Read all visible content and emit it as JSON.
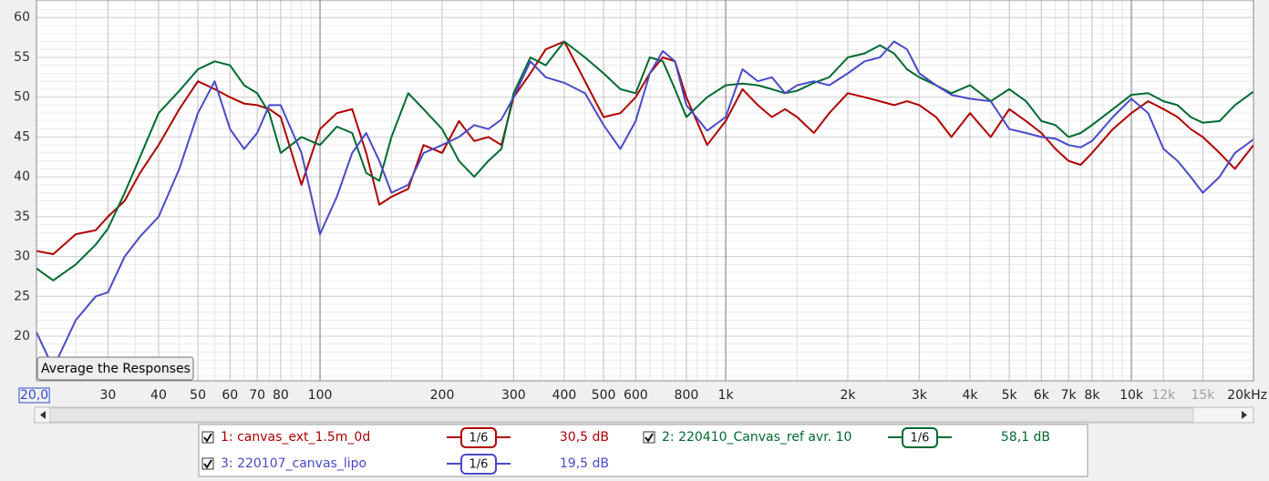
{
  "chart_data": {
    "type": "line",
    "xscale": "log",
    "xlim": [
      20,
      20000
    ],
    "ylim": [
      14.4,
      62.2
    ],
    "yticks": [
      20,
      25,
      30,
      35,
      40,
      45,
      50,
      55,
      60
    ],
    "xticks": [
      {
        "value": 20,
        "label": "20,0"
      },
      30,
      40,
      50,
      60,
      70,
      80,
      100,
      200,
      300,
      400,
      500,
      600,
      800,
      {
        "value": 1000,
        "label": "1k"
      },
      {
        "value": 2000,
        "label": "2k"
      },
      {
        "value": 3000,
        "label": "3k"
      },
      {
        "value": 4000,
        "label": "4k"
      },
      {
        "value": 5000,
        "label": "5k"
      },
      {
        "value": 6000,
        "label": "6k"
      },
      {
        "value": 7000,
        "label": "7k"
      },
      {
        "value": 8000,
        "label": "8k"
      },
      {
        "value": 10000,
        "label": "10k"
      },
      {
        "value": 12000,
        "label": "12k",
        "color": "#a0a0a0"
      },
      {
        "value": 15000,
        "label": "15k",
        "color": "#a0a0a0"
      },
      {
        "value": 20000,
        "label": "20kHz"
      }
    ],
    "grid": true,
    "x": [
      20,
      22,
      25,
      28,
      30,
      33,
      36,
      40,
      45,
      50,
      55,
      60,
      65,
      70,
      75,
      80,
      90,
      100,
      110,
      120,
      130,
      140,
      150,
      165,
      180,
      200,
      220,
      240,
      260,
      280,
      300,
      330,
      360,
      400,
      450,
      500,
      550,
      600,
      650,
      700,
      750,
      800,
      900,
      1000,
      1100,
      1200,
      1300,
      1400,
      1500,
      1650,
      1800,
      2000,
      2200,
      2400,
      2600,
      2800,
      3000,
      3300,
      3600,
      4000,
      4500,
      5000,
      5500,
      6000,
      6500,
      7000,
      7500,
      8000,
      9000,
      10000,
      11000,
      12000,
      13000,
      14000,
      15000,
      16500,
      18000,
      20000
    ],
    "series": [
      {
        "name": "1: canvas_ext_1.5m_0d",
        "color": "#b00000",
        "smoothing": "1/6",
        "level": "30,5 dB",
        "values": [
          30.7,
          30.3,
          32.8,
          33.3,
          35,
          37,
          40.5,
          44,
          48.5,
          52,
          51,
          50,
          49.2,
          49,
          48.5,
          47.5,
          39,
          46,
          48,
          48.5,
          43,
          36.5,
          37.5,
          38.5,
          44,
          43,
          47,
          44.5,
          45,
          44,
          50,
          53,
          56,
          57,
          52,
          47.5,
          48,
          50,
          53,
          55,
          54.5,
          50,
          44,
          47,
          51,
          49,
          47.5,
          48.5,
          47.5,
          45.5,
          48,
          50.5,
          50,
          49.5,
          49,
          49.5,
          49,
          47.5,
          45,
          48,
          45,
          48.5,
          47,
          45.5,
          43.5,
          42,
          41.5,
          43,
          46,
          48,
          49.5,
          48.5,
          47.5,
          46,
          45,
          43,
          41,
          44
        ]
      },
      {
        "name": "2: 220410_Canvas_ref avr. 10",
        "color": "#006a30",
        "smoothing": "1/6",
        "level": "58,1 dB",
        "values": [
          28.5,
          27,
          29,
          31.5,
          33.5,
          38,
          42.5,
          48,
          50.8,
          53.5,
          54.5,
          54,
          51.5,
          50.5,
          48,
          43,
          45,
          44,
          46.3,
          45.5,
          40.5,
          39.5,
          45,
          50.5,
          48.5,
          46,
          42,
          40,
          42,
          43.5,
          50.5,
          55,
          54,
          57,
          55,
          53,
          51,
          50.5,
          55,
          54.5,
          51,
          47.5,
          50,
          51.5,
          51.7,
          51.5,
          51,
          50.5,
          50.8,
          51.8,
          52.5,
          55,
          55.5,
          56.5,
          55.5,
          53.5,
          52.5,
          51.5,
          50.5,
          51.5,
          49.5,
          51,
          49.5,
          47,
          46.5,
          45,
          45.5,
          46.5,
          48.5,
          50.3,
          50.5,
          49.5,
          49,
          47.5,
          46.8,
          47,
          49,
          50.7
        ]
      },
      {
        "name": "3: 220107_canvas_lipo",
        "color": "#4a4ac8",
        "smoothing": "1/6",
        "level": "19,5 dB",
        "values": [
          20.5,
          16,
          22,
          25,
          25.5,
          30,
          32.5,
          35,
          41,
          48,
          52,
          46,
          43.5,
          45.5,
          49,
          49,
          43,
          32.8,
          37.5,
          43,
          45.5,
          42,
          38,
          39,
          43,
          44,
          45,
          46.5,
          46,
          47.2,
          50,
          54.5,
          52.5,
          51.8,
          50.5,
          46.5,
          43.5,
          47,
          53,
          55.8,
          54.5,
          49,
          45.8,
          47.5,
          53.5,
          52,
          52.5,
          50.5,
          51.5,
          52,
          51.5,
          53,
          54.5,
          55,
          57,
          56,
          53,
          51.5,
          50.3,
          49.8,
          49.5,
          46,
          45.5,
          45,
          44.8,
          44,
          43.7,
          44.5,
          47.5,
          49.8,
          48,
          43.5,
          42,
          40,
          38,
          40,
          43,
          44.7
        ]
      }
    ]
  },
  "button": "Average the Responses"
}
